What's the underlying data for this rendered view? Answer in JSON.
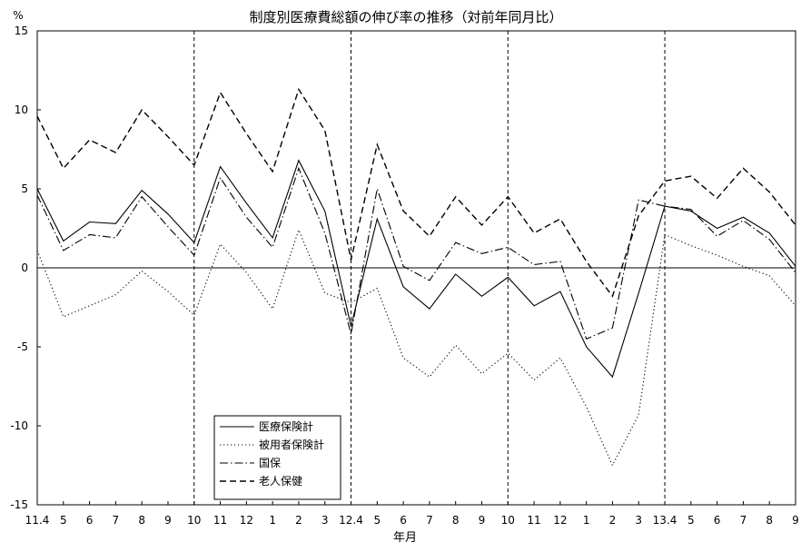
{
  "chart_data": {
    "type": "line",
    "title": "制度別医療費総額の伸び率の推移（対前年同月比）",
    "y_unit": "%",
    "xlabel": "年月",
    "ylabel": "",
    "ylim": [
      -15,
      15
    ],
    "yticks": [
      -15,
      -10,
      -5,
      0,
      5,
      10,
      15
    ],
    "categories": [
      "11.4",
      "5",
      "6",
      "7",
      "8",
      "9",
      "10",
      "11",
      "12",
      "1",
      "2",
      "3",
      "12.4",
      "5",
      "6",
      "7",
      "8",
      "9",
      "10",
      "11",
      "12",
      "1",
      "2",
      "3",
      "13.4",
      "5",
      "6",
      "7",
      "8",
      "9"
    ],
    "vertical_reference_lines_at": [
      "10",
      "12.4",
      "10",
      "13.4"
    ],
    "vertical_reference_line_indices": [
      6,
      12,
      18,
      24
    ],
    "zero_line": true,
    "grid": false,
    "legend_position": "bottom-left",
    "series": [
      {
        "name": "医療保険計",
        "style": "solid",
        "values": [
          5.0,
          1.7,
          2.9,
          2.8,
          4.9,
          3.4,
          1.6,
          6.4,
          4.1,
          1.9,
          6.8,
          3.6,
          -3.7,
          3.1,
          -1.2,
          -2.6,
          -0.4,
          -1.8,
          -0.6,
          -2.4,
          -1.5,
          -5.0,
          -6.9,
          -1.6,
          3.9,
          3.6,
          2.5,
          3.2,
          2.2,
          0.1
        ]
      },
      {
        "name": "被用者保険計",
        "style": "dotted",
        "values": [
          1.1,
          -3.1,
          -2.4,
          -1.7,
          -0.2,
          -1.5,
          -3.0,
          1.5,
          -0.3,
          -2.6,
          2.4,
          -1.6,
          -2.2,
          -1.3,
          -5.7,
          -6.9,
          -4.9,
          -6.7,
          -5.4,
          -7.1,
          -5.7,
          -8.8,
          -12.5,
          -9.3,
          2.1,
          1.4,
          0.8,
          0.1,
          -0.5,
          -2.4
        ]
      },
      {
        "name": "国保",
        "style": "dash-dot",
        "values": [
          4.6,
          1.1,
          2.1,
          1.9,
          4.5,
          2.6,
          0.8,
          5.7,
          3.2,
          1.3,
          6.3,
          2.2,
          -4.2,
          5.0,
          0.1,
          -0.8,
          1.6,
          0.9,
          1.3,
          0.2,
          0.4,
          -4.5,
          -3.8,
          4.3,
          3.9,
          3.7,
          2.0,
          3.0,
          1.8,
          -0.3
        ]
      },
      {
        "name": "老人保健",
        "style": "dashed",
        "values": [
          9.6,
          6.3,
          8.1,
          7.3,
          10.0,
          8.3,
          6.5,
          11.1,
          8.5,
          6.1,
          11.3,
          8.7,
          0.5,
          7.8,
          3.6,
          2.0,
          4.5,
          2.7,
          4.5,
          2.2,
          3.1,
          0.4,
          -1.8,
          3.3,
          5.5,
          5.8,
          4.4,
          6.3,
          4.8,
          2.7
        ]
      }
    ]
  }
}
